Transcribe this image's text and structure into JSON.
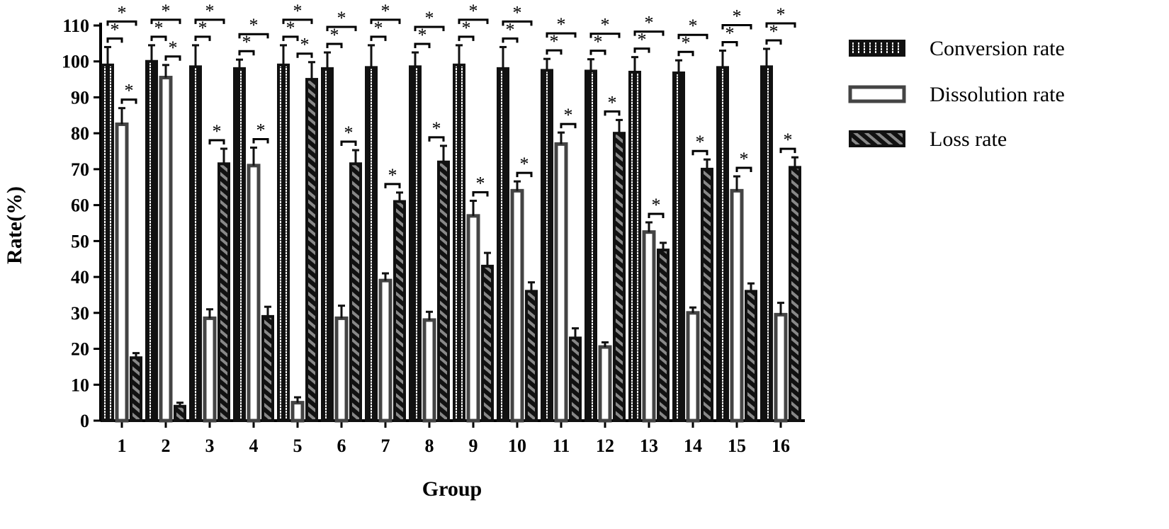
{
  "chart_data": {
    "type": "bar",
    "title": "",
    "xlabel": "Group",
    "ylabel": "Rate(%)",
    "ylim": [
      0,
      110
    ],
    "yticks": [
      0,
      10,
      20,
      30,
      40,
      50,
      60,
      70,
      80,
      90,
      100,
      110
    ],
    "grid": false,
    "legend_position": "top-right",
    "significance_marker": "*",
    "categories": [
      "1",
      "2",
      "3",
      "4",
      "5",
      "6",
      "7",
      "8",
      "9",
      "10",
      "11",
      "12",
      "13",
      "14",
      "15",
      "16"
    ],
    "series": [
      {
        "name": "Conversion rate",
        "pattern": "dotted-white-on-black",
        "values": [
          99,
          100,
          98.5,
          98,
          99,
          98,
          98.3,
          98.5,
          99,
          98,
          97.5,
          97.3,
          97,
          96.8,
          98.3,
          98.5
        ],
        "errors": [
          5,
          4.5,
          6,
          2.5,
          5.5,
          4.5,
          6.2,
          4,
          5.5,
          6,
          3.2,
          3.3,
          4.2,
          3.5,
          4.7,
          5
        ]
      },
      {
        "name": "Dissolution rate",
        "pattern": "hollow-gray",
        "values": [
          82.5,
          95.5,
          28.5,
          71,
          5,
          28.5,
          39,
          28,
          57,
          64,
          77,
          20.5,
          52.5,
          30,
          64,
          29.5
        ],
        "errors": [
          4.5,
          3.5,
          2.5,
          5,
          1.5,
          3.5,
          2,
          2.3,
          4.2,
          2.6,
          3.2,
          1.3,
          2.7,
          1.5,
          4,
          3.3
        ]
      },
      {
        "name": "Loss rate",
        "pattern": "hatched-black",
        "values": [
          17.5,
          4,
          71.5,
          29,
          95,
          71.5,
          61,
          72,
          43,
          36,
          23,
          80,
          47.5,
          70,
          36,
          70.5
        ],
        "errors": [
          1.3,
          1,
          4.2,
          2.7,
          4.8,
          3.8,
          2.5,
          4.5,
          3.7,
          2.5,
          2.7,
          3.7,
          2,
          2.7,
          2.2,
          2.8
        ]
      }
    ]
  },
  "colors": {
    "bar_outline": "#111111",
    "conversion_fill": "#111111",
    "conversion_dots": "#ffffff",
    "dissolution_fill": "#ffffff",
    "dissolution_stroke": "#444444",
    "loss_fill": "#111111",
    "loss_hatch": "#888888",
    "axis": "#000000"
  }
}
